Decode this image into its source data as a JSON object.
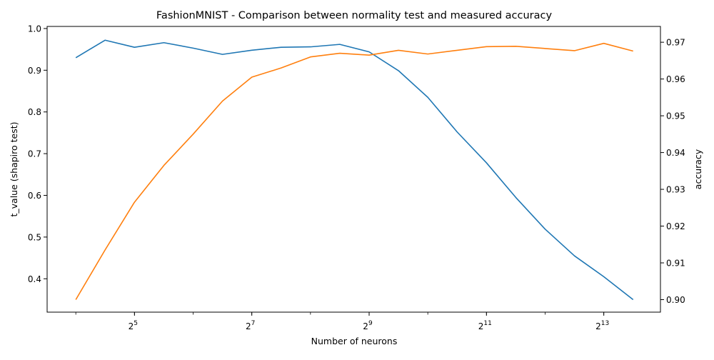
{
  "chart_data": {
    "type": "line",
    "title": "FashionMNIST - Comparison between normality test and measured accuracy",
    "xlabel": "Number of neurons",
    "ylabel_left": "t_value (shapiro test)",
    "ylabel_right": "accuracy",
    "x_scale": "log2",
    "x": [
      16,
      22.6,
      32,
      45.3,
      64,
      90.5,
      128,
      181,
      256,
      362,
      512,
      724,
      1024,
      1448,
      2048,
      2896,
      4096,
      5793,
      8192,
      11585
    ],
    "xlim": [
      11.4,
      16000
    ],
    "x_ticks": [
      32,
      128,
      512,
      2048,
      8192
    ],
    "x_tick_labels": [
      {
        "base": "2",
        "exp": "5"
      },
      {
        "base": "2",
        "exp": "7"
      },
      {
        "base": "2",
        "exp": "9"
      },
      {
        "base": "2",
        "exp": "11"
      },
      {
        "base": "2",
        "exp": "13"
      }
    ],
    "ylim_left": [
      0.32,
      1.005
    ],
    "yticks_left": [
      "0.4",
      "0.5",
      "0.6",
      "0.7",
      "0.8",
      "0.9",
      "1.0"
    ],
    "ylim_right": [
      0.8966,
      0.9743
    ],
    "yticks_right": [
      "0.90",
      "0.91",
      "0.92",
      "0.93",
      "0.94",
      "0.95",
      "0.96",
      "0.97"
    ],
    "series": [
      {
        "axis": "left",
        "color": "#1f77b4",
        "values": [
          0.93,
          0.972,
          0.955,
          0.966,
          0.953,
          0.938,
          0.948,
          0.955,
          0.956,
          0.962,
          0.944,
          0.899,
          0.835,
          0.752,
          0.678,
          0.595,
          0.519,
          0.455,
          0.405,
          0.35
        ]
      },
      {
        "axis": "right",
        "color": "#ff7f0e",
        "values": [
          0.9,
          0.9135,
          0.9265,
          0.9365,
          0.945,
          0.954,
          0.9605,
          0.963,
          0.966,
          0.967,
          0.9665,
          0.9678,
          0.9668,
          0.9678,
          0.9688,
          0.9689,
          0.9683,
          0.9677,
          0.9697,
          0.9676
        ]
      }
    ],
    "grid": false,
    "legend": "none"
  }
}
